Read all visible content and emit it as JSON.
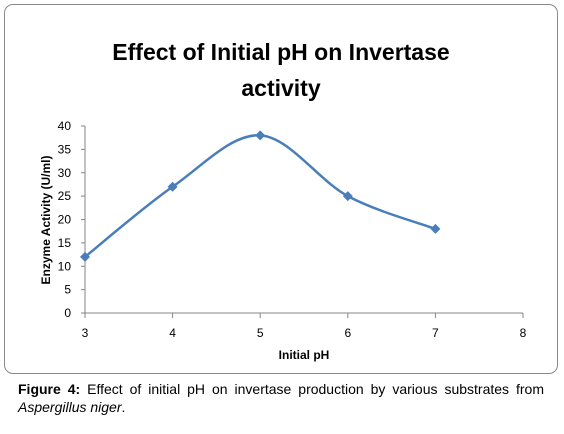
{
  "chart_data": {
    "type": "line",
    "title_lines": [
      "Effect of Initial pH on Invertase",
      "activity"
    ],
    "xlabel": "Initial pH",
    "ylabel": "Enzyme  Activity (U/ml)",
    "x": [
      3,
      4,
      5,
      6,
      7
    ],
    "series": [
      {
        "values": [
          12,
          27,
          38,
          25,
          18
        ],
        "color": "#4a7ebb"
      }
    ],
    "xlim": [
      3,
      8
    ],
    "ylim": [
      0,
      40
    ],
    "xticks": [
      3,
      4,
      5,
      6,
      7,
      8
    ],
    "yticks": [
      0,
      5,
      10,
      15,
      20,
      25,
      30,
      35,
      40
    ],
    "grid": false,
    "smooth": true,
    "marker": "diamond"
  },
  "caption": {
    "label": "Figure 4:",
    "text": " Effect of initial pH on invertase production by various substrates from ",
    "italic": "Aspergillus niger",
    "end": "."
  }
}
